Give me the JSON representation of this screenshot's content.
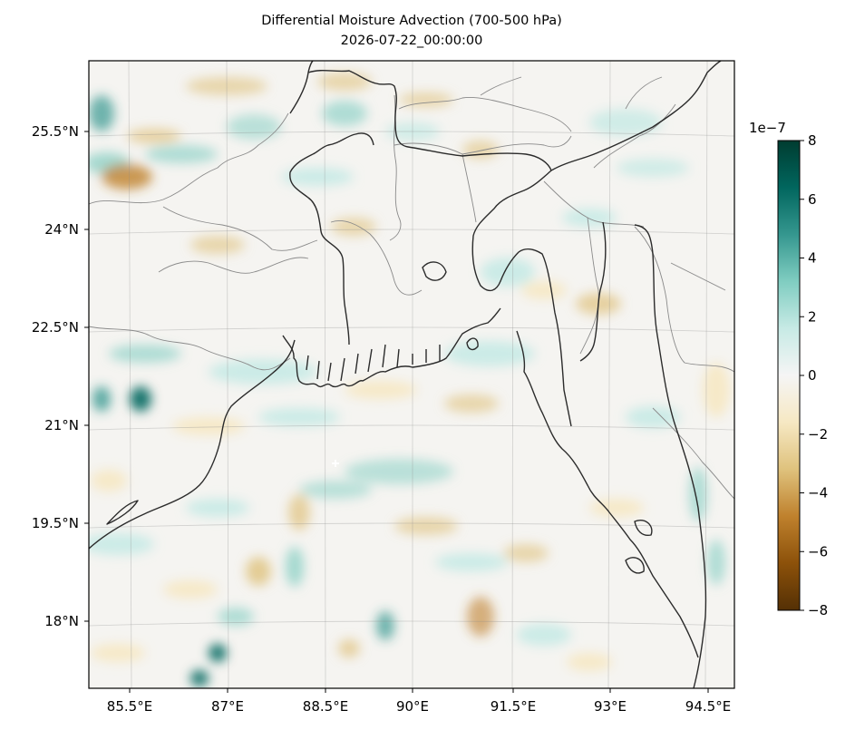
{
  "title": {
    "line1": "Differential Moisture Advection (700-500 hPa)",
    "line2": "2026-07-22_00:00:00"
  },
  "map": {
    "lon_range": [
      84.5,
      95.5
    ],
    "lat_range": [
      16.8,
      26.3
    ],
    "x_ticks": [
      "85.5°E",
      "87°E",
      "88.5°E",
      "90°E",
      "91.5°E",
      "93°E",
      "94.5°E"
    ],
    "y_ticks": [
      "25.5°N",
      "24°N",
      "22.5°N",
      "21°N",
      "19.5°N",
      "18°N"
    ],
    "colormap": "BrBG",
    "gridlines": true,
    "features": [
      "coastline",
      "country borders",
      "state borders"
    ]
  },
  "colorbar": {
    "exponent_label": "1e−7",
    "ticks": [
      "8",
      "6",
      "4",
      "2",
      "0",
      "−2",
      "−4",
      "−6",
      "−8"
    ],
    "range": [
      -8,
      8
    ],
    "colors": [
      "#543005",
      "#8c510a",
      "#bf812d",
      "#dfc27d",
      "#f6e8c3",
      "#f5f5f5",
      "#c7eae5",
      "#80cdc1",
      "#35978f",
      "#01665e",
      "#003c30"
    ]
  }
}
